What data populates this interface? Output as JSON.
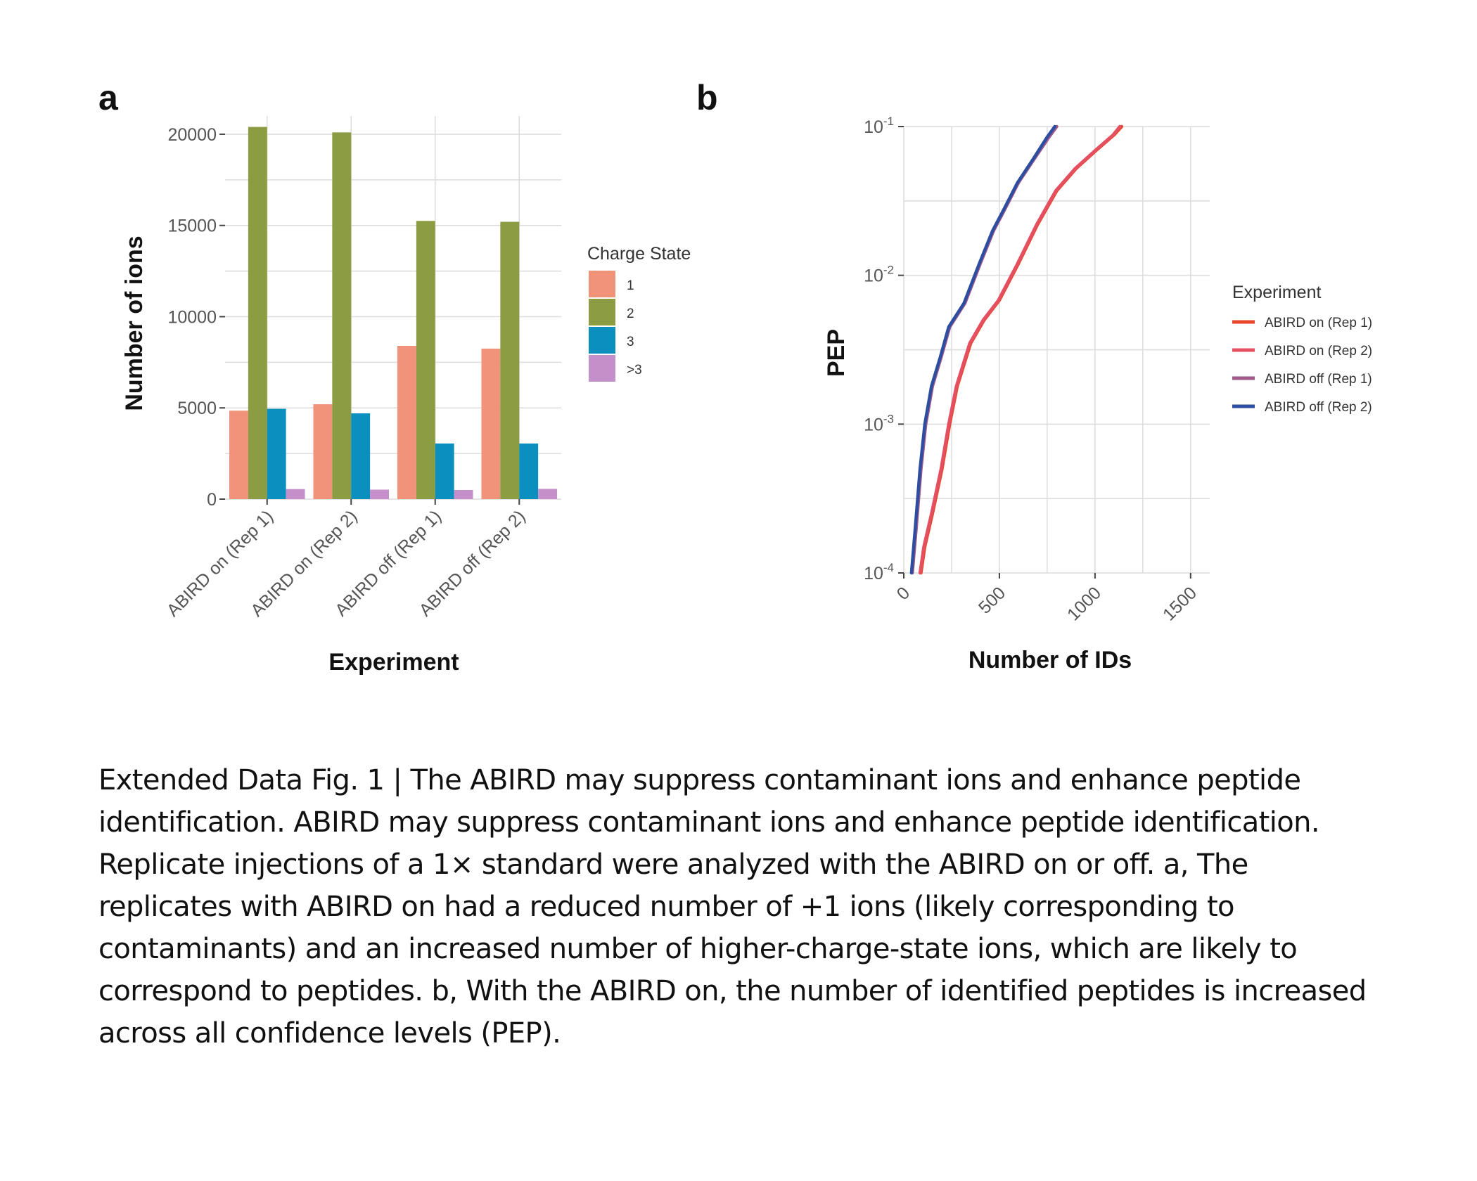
{
  "panels": {
    "a_label": "a",
    "b_label": "b"
  },
  "chart_data": [
    {
      "type": "bar",
      "categories": [
        "ABIRD on (Rep 1)",
        "ABIRD on (Rep 2)",
        "ABIRD off (Rep 1)",
        "ABIRD off (Rep 2)"
      ],
      "series": [
        {
          "name": "1",
          "color": "#f0937a",
          "values": [
            4850,
            5200,
            8400,
            8250
          ]
        },
        {
          "name": "2",
          "color": "#8b9c42",
          "values": [
            20400,
            20100,
            15250,
            15200
          ]
        },
        {
          "name": "3",
          "color": "#0a8fbe",
          "values": [
            4950,
            4700,
            3050,
            3050
          ]
        },
        {
          "name": ">3",
          "color": "#c58fc9",
          "values": [
            550,
            520,
            500,
            560
          ]
        }
      ],
      "xlabel": "Experiment",
      "ylabel": "Number of ions",
      "ylim": [
        0,
        21000
      ],
      "yticks": [
        0,
        5000,
        10000,
        15000,
        20000
      ],
      "ytick_labels": [
        "0",
        "5000",
        "10000",
        "15000",
        "20000"
      ],
      "legend_title": "Charge State",
      "legend_position": "right",
      "grid": true
    },
    {
      "type": "line",
      "xlabel": "Number of IDs",
      "ylabel": "PEP",
      "y_scale": "log",
      "xlim": [
        0,
        1600
      ],
      "ylim": [
        0.0001,
        0.1
      ],
      "xticks": [
        0,
        500,
        1000,
        1500
      ],
      "xtick_labels": [
        "0",
        "500",
        "1000",
        "1500"
      ],
      "yticks": [
        {
          "value": 0.1,
          "base": "10",
          "exp": "-1"
        },
        {
          "value": 0.01,
          "base": "10",
          "exp": "-2"
        },
        {
          "value": 0.001,
          "base": "10",
          "exp": "-3"
        },
        {
          "value": 0.0001,
          "base": "10",
          "exp": "-4"
        }
      ],
      "legend_title": "Experiment",
      "legend_position": "right",
      "grid": true,
      "series": [
        {
          "name": "ABIRD on (Rep 1)",
          "color": "#e8472e",
          "points": [
            [
              90,
              0.0001
            ],
            [
              110,
              0.00015
            ],
            [
              150,
              0.00025
            ],
            [
              200,
              0.0005
            ],
            [
              240,
              0.001
            ],
            [
              280,
              0.0018
            ],
            [
              350,
              0.0035
            ],
            [
              420,
              0.005
            ],
            [
              500,
              0.0068
            ],
            [
              600,
              0.012
            ],
            [
              700,
              0.022
            ],
            [
              800,
              0.037
            ],
            [
              900,
              0.052
            ],
            [
              1000,
              0.068
            ],
            [
              1100,
              0.088
            ],
            [
              1140,
              0.1
            ]
          ]
        },
        {
          "name": "ABIRD on (Rep 2)",
          "color": "#e45062",
          "points": [
            [
              85,
              0.0001
            ],
            [
              105,
              0.00015
            ],
            [
              145,
              0.00025
            ],
            [
              195,
              0.0005
            ],
            [
              235,
              0.001
            ],
            [
              275,
              0.0018
            ],
            [
              345,
              0.0035
            ],
            [
              415,
              0.005
            ],
            [
              495,
              0.0068
            ],
            [
              595,
              0.012
            ],
            [
              695,
              0.022
            ],
            [
              795,
              0.037
            ],
            [
              895,
              0.052
            ],
            [
              995,
              0.068
            ],
            [
              1095,
              0.088
            ],
            [
              1130,
              0.1
            ]
          ]
        },
        {
          "name": "ABIRD off (Rep 1)",
          "color": "#a25a8a",
          "points": [
            [
              45,
              0.0001
            ],
            [
              65,
              0.0002
            ],
            [
              90,
              0.0005
            ],
            [
              115,
              0.001
            ],
            [
              150,
              0.0018
            ],
            [
              195,
              0.0028
            ],
            [
              240,
              0.0045
            ],
            [
              320,
              0.0065
            ],
            [
              400,
              0.012
            ],
            [
              470,
              0.02
            ],
            [
              530,
              0.028
            ],
            [
              600,
              0.042
            ],
            [
              680,
              0.06
            ],
            [
              760,
              0.085
            ],
            [
              800,
              0.1
            ]
          ]
        },
        {
          "name": "ABIRD off (Rep 2)",
          "color": "#2d4ea0",
          "points": [
            [
              40,
              0.0001
            ],
            [
              60,
              0.0002
            ],
            [
              85,
              0.0005
            ],
            [
              110,
              0.001
            ],
            [
              145,
              0.0018
            ],
            [
              190,
              0.0028
            ],
            [
              235,
              0.0045
            ],
            [
              315,
              0.0065
            ],
            [
              395,
              0.012
            ],
            [
              465,
              0.02
            ],
            [
              525,
              0.028
            ],
            [
              595,
              0.042
            ],
            [
              675,
              0.06
            ],
            [
              750,
              0.085
            ],
            [
              790,
              0.1
            ]
          ]
        }
      ]
    }
  ],
  "caption": "Extended Data Fig. 1 | The ABIRD may suppress contaminant ions and enhance peptide identification. ABIRD may suppress contaminant ions and enhance peptide identification. Replicate injections of a 1× standard were analyzed with the ABIRD on or off. a, The replicates with ABIRD on had a reduced number of +1 ions (likely corresponding to contaminants) and an increased number of higher-charge-state ions, which are likely to correspond to peptides. b, With the ABIRD on, the number of identified peptides is increased across all confidence levels (PEP)."
}
